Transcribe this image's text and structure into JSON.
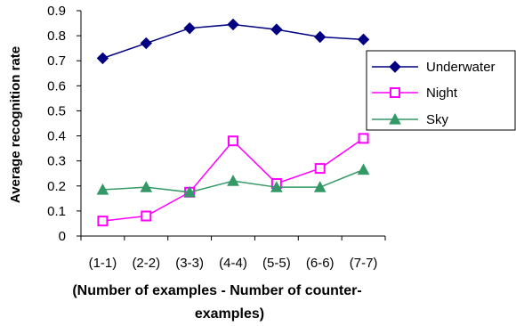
{
  "chart_data": {
    "type": "line",
    "categories": [
      "(1-1)",
      "(2-2)",
      "(3-3)",
      "(4-4)",
      "(5-5)",
      "(6-6)",
      "(7-7)"
    ],
    "series": [
      {
        "name": "Underwater",
        "values": [
          0.71,
          0.77,
          0.83,
          0.845,
          0.825,
          0.795,
          0.785
        ],
        "color": "#000080",
        "marker": "diamond"
      },
      {
        "name": "Night",
        "values": [
          0.06,
          0.08,
          0.175,
          0.38,
          0.21,
          0.27,
          0.39
        ],
        "color": "#ff00ff",
        "marker": "square"
      },
      {
        "name": "Sky",
        "values": [
          0.185,
          0.195,
          0.175,
          0.22,
          0.195,
          0.195,
          0.265
        ],
        "color": "#339966",
        "marker": "triangle"
      }
    ],
    "yticks": [
      "0",
      "0.1",
      "0.2",
      "0.3",
      "0.4",
      "0.5",
      "0.6",
      "0.7",
      "0.8",
      "0.9"
    ],
    "ylim": [
      0,
      0.9
    ],
    "ylabel": "Average recognition rate",
    "xlabel_line1": "(Number of examples - Number of counter-",
    "xlabel_line2": "examples)",
    "legend_position": "right",
    "grid": false
  }
}
